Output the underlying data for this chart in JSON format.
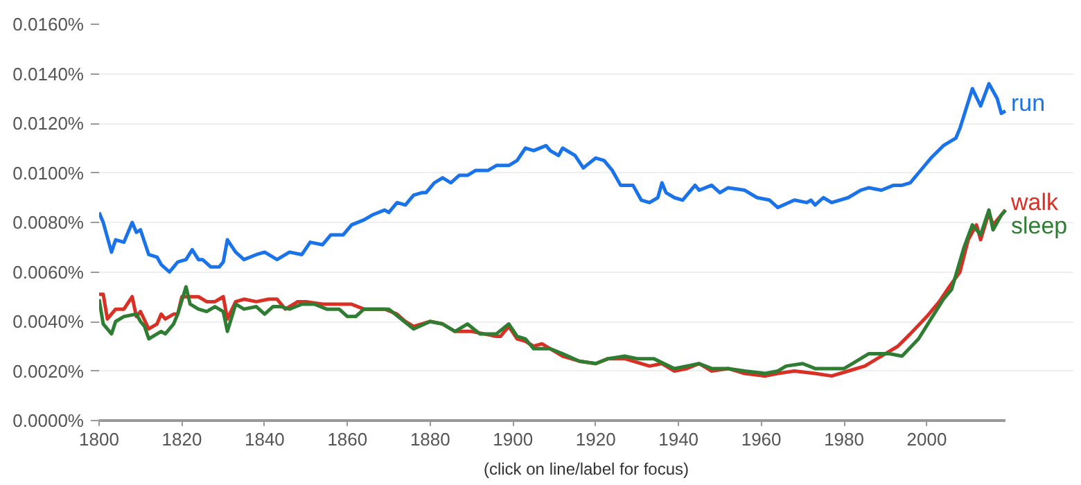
{
  "chart_data": {
    "type": "line",
    "xlim": [
      1800,
      2019
    ],
    "xticks": [
      1800,
      1820,
      1840,
      1860,
      1880,
      1900,
      1920,
      1940,
      1960,
      1980,
      2000
    ],
    "ylim": [
      0,
      0.016
    ],
    "yticks": [
      {
        "value": 0,
        "label": "0.0000%"
      },
      {
        "value": 0.002,
        "label": "0.0020%"
      },
      {
        "value": 0.004,
        "label": "0.0040%"
      },
      {
        "value": 0.006,
        "label": "0.0060%"
      },
      {
        "value": 0.008,
        "label": "0.0080%"
      },
      {
        "value": 0.01,
        "label": "0.0100%"
      },
      {
        "value": 0.012,
        "label": "0.0120%"
      },
      {
        "value": 0.014,
        "label": "0.0140%"
      },
      {
        "value": 0.016,
        "label": "0.0160%"
      }
    ],
    "grid": "y",
    "line_style": "solid",
    "marker": "none",
    "annotations": [
      "(click on line/label for focus)"
    ],
    "series": [
      {
        "name": "run",
        "color": "#1a73e8",
        "x": [
          1800,
          1801,
          1803,
          1804,
          1806,
          1808,
          1809,
          1810,
          1812,
          1814,
          1815,
          1817,
          1819,
          1821,
          1822.5,
          1824,
          1825,
          1827,
          1829,
          1830,
          1831,
          1833,
          1835,
          1838,
          1840,
          1843,
          1846,
          1849,
          1851,
          1854,
          1856,
          1859,
          1861,
          1864,
          1866,
          1869,
          1870,
          1872,
          1874,
          1876,
          1878,
          1879,
          1881,
          1883,
          1885,
          1887,
          1889,
          1891,
          1894,
          1896,
          1899,
          1901,
          1903,
          1905,
          1908,
          1909,
          1911,
          1912,
          1915,
          1917,
          1920,
          1922,
          1924,
          1926,
          1929,
          1931,
          1933,
          1935,
          1936,
          1937,
          1939,
          1941,
          1944,
          1945,
          1948,
          1950,
          1952,
          1956,
          1959,
          1962,
          1964,
          1968,
          1971,
          1972,
          1973,
          1975,
          1977,
          1981,
          1984,
          1986,
          1989,
          1992,
          1994,
          1996,
          1998,
          2001,
          2004,
          2007,
          2008,
          2011,
          2013,
          2015,
          2017,
          2018,
          2019
        ],
        "values": [
          0.0084,
          0.008,
          0.0068,
          0.0073,
          0.0072,
          0.008,
          0.0076,
          0.0077,
          0.0067,
          0.0066,
          0.0063,
          0.006,
          0.0064,
          0.0065,
          0.0069,
          0.0065,
          0.0065,
          0.0062,
          0.0062,
          0.0064,
          0.0073,
          0.0068,
          0.0065,
          0.0067,
          0.0068,
          0.0065,
          0.0068,
          0.0067,
          0.0072,
          0.0071,
          0.0075,
          0.0075,
          0.0079,
          0.0081,
          0.0083,
          0.0085,
          0.0084,
          0.0088,
          0.0087,
          0.0091,
          0.0092,
          0.0092,
          0.0096,
          0.0098,
          0.0096,
          0.0099,
          0.0099,
          0.0101,
          0.0101,
          0.0103,
          0.0103,
          0.0105,
          0.011,
          0.0109,
          0.0111,
          0.0109,
          0.0107,
          0.011,
          0.0107,
          0.0102,
          0.0106,
          0.0105,
          0.0101,
          0.0095,
          0.0095,
          0.0089,
          0.0088,
          0.009,
          0.0096,
          0.0092,
          0.009,
          0.0089,
          0.0095,
          0.0093,
          0.0095,
          0.0092,
          0.0094,
          0.0093,
          0.009,
          0.0089,
          0.0086,
          0.0089,
          0.0088,
          0.0089,
          0.0087,
          0.009,
          0.0088,
          0.009,
          0.0093,
          0.0094,
          0.0093,
          0.0095,
          0.0095,
          0.0096,
          0.01,
          0.0106,
          0.0111,
          0.0114,
          0.0118,
          0.0134,
          0.0127,
          0.0136,
          0.013,
          0.0124,
          0.0125
        ]
      },
      {
        "name": "walk",
        "color": "#d93025",
        "x": [
          1800,
          1801,
          1802,
          1804,
          1806,
          1808,
          1809,
          1810,
          1812,
          1814,
          1815,
          1816,
          1818,
          1819,
          1820,
          1822,
          1824,
          1826,
          1828,
          1830,
          1831,
          1833,
          1835,
          1838,
          1841,
          1843,
          1845,
          1848,
          1850,
          1854,
          1859,
          1861,
          1864,
          1869,
          1872,
          1874,
          1876,
          1880,
          1883,
          1886,
          1890,
          1893,
          1896,
          1897,
          1899,
          1901,
          1903,
          1905,
          1907,
          1909,
          1912,
          1916,
          1920,
          1923,
          1927,
          1933,
          1936,
          1939,
          1942,
          1945,
          1948,
          1952,
          1956,
          1961,
          1964,
          1968,
          1973,
          1977,
          1981,
          1985,
          1989,
          1993,
          1996,
          2000,
          2003,
          2005,
          2008,
          2010,
          2012,
          2013,
          2015,
          2016,
          2018,
          2019
        ],
        "values": [
          0.0051,
          0.0051,
          0.0041,
          0.0045,
          0.0045,
          0.005,
          0.0042,
          0.0044,
          0.0037,
          0.0039,
          0.0043,
          0.0041,
          0.0043,
          0.0043,
          0.005,
          0.005,
          0.005,
          0.0048,
          0.0048,
          0.005,
          0.0041,
          0.0048,
          0.0049,
          0.0048,
          0.0049,
          0.0049,
          0.0045,
          0.0048,
          0.0048,
          0.0047,
          0.0047,
          0.0047,
          0.0045,
          0.0045,
          0.0043,
          0.004,
          0.0038,
          0.004,
          0.0039,
          0.0036,
          0.0036,
          0.0035,
          0.0034,
          0.0034,
          0.0038,
          0.0033,
          0.0032,
          0.003,
          0.0031,
          0.0029,
          0.0026,
          0.0024,
          0.0023,
          0.0025,
          0.0025,
          0.0022,
          0.0023,
          0.002,
          0.0021,
          0.0023,
          0.002,
          0.0021,
          0.0019,
          0.0018,
          0.0019,
          0.002,
          0.0019,
          0.0018,
          0.002,
          0.0022,
          0.0026,
          0.003,
          0.0035,
          0.0042,
          0.0048,
          0.0053,
          0.006,
          0.0073,
          0.0079,
          0.0073,
          0.0084,
          0.0079,
          0.0083,
          0.0085
        ]
      },
      {
        "name": "sleep",
        "color": "#2e7d32",
        "x": [
          1800,
          1801,
          1803,
          1804,
          1806,
          1809,
          1810,
          1811,
          1812,
          1814,
          1815,
          1816,
          1818,
          1819,
          1821,
          1822,
          1824,
          1826,
          1828,
          1830,
          1831,
          1833,
          1835,
          1838,
          1840,
          1842,
          1844,
          1846,
          1849,
          1852,
          1855,
          1858,
          1860,
          1862,
          1864,
          1868,
          1870,
          1873,
          1876,
          1880,
          1883,
          1886,
          1889,
          1892,
          1896,
          1899,
          1901,
          1903,
          1905,
          1907,
          1909,
          1912,
          1916,
          1920,
          1923,
          1927,
          1930,
          1934,
          1939,
          1942,
          1945,
          1948,
          1952,
          1956,
          1961,
          1964,
          1966,
          1970,
          1973,
          1980,
          1982,
          1986,
          1991,
          1994,
          1998,
          2001,
          2004,
          2006,
          2009,
          2011,
          2013,
          2015,
          2016,
          2018,
          2019
        ],
        "values": [
          0.0049,
          0.0039,
          0.0035,
          0.004,
          0.0042,
          0.0043,
          0.004,
          0.0038,
          0.0033,
          0.0035,
          0.0036,
          0.0035,
          0.0039,
          0.0043,
          0.0054,
          0.0047,
          0.0045,
          0.0044,
          0.0046,
          0.0044,
          0.0036,
          0.0047,
          0.0045,
          0.0046,
          0.0043,
          0.0046,
          0.0046,
          0.0045,
          0.0047,
          0.0047,
          0.0045,
          0.0045,
          0.0042,
          0.0042,
          0.0045,
          0.0045,
          0.0045,
          0.0041,
          0.0037,
          0.004,
          0.0039,
          0.0036,
          0.0039,
          0.0035,
          0.0035,
          0.0039,
          0.0034,
          0.0033,
          0.0029,
          0.0029,
          0.0029,
          0.0027,
          0.0024,
          0.0023,
          0.0025,
          0.0026,
          0.0025,
          0.0025,
          0.0021,
          0.0022,
          0.0023,
          0.0021,
          0.0021,
          0.002,
          0.0019,
          0.002,
          0.0022,
          0.0023,
          0.0021,
          0.0021,
          0.0023,
          0.0027,
          0.0027,
          0.0026,
          0.0033,
          0.0041,
          0.0049,
          0.0053,
          0.007,
          0.0079,
          0.0075,
          0.0085,
          0.0077,
          0.0083,
          0.0085
        ]
      }
    ]
  }
}
